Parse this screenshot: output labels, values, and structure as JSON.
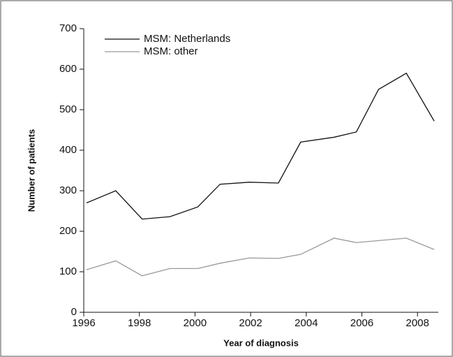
{
  "chart_data": {
    "type": "line",
    "x_label": "Year of diagnosis",
    "y_label": "Number of patients",
    "x": [
      1996.1,
      1997.15,
      1998.1,
      1999.1,
      2000.1,
      2000.9,
      2001.95,
      2003.0,
      2003.8,
      2005.0,
      2005.8,
      2006.6,
      2007.6,
      2008.6
    ],
    "series": [
      {
        "name": "MSM: Netherlands",
        "color": "#111111",
        "values": [
          270,
          300,
          230,
          236,
          260,
          316,
          321,
          319,
          420,
          432,
          445,
          550,
          590,
          472
        ]
      },
      {
        "name": "MSM: other",
        "color": "#999999",
        "values": [
          105,
          127,
          90,
          108,
          108,
          121,
          134,
          133,
          143,
          183,
          172,
          177,
          183,
          155
        ]
      }
    ],
    "xlim": [
      1996,
      2008.75
    ],
    "xticks": [
      1996,
      1998,
      2000,
      2002,
      2004,
      2006,
      2008
    ],
    "ylim": [
      0,
      700
    ],
    "yticks": [
      0,
      100,
      200,
      300,
      400,
      500,
      600,
      700
    ],
    "legend": "upper left",
    "grid": false
  }
}
